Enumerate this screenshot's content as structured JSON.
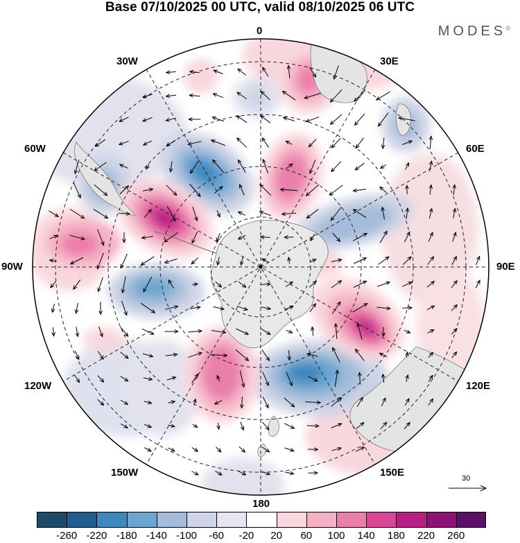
{
  "header": {
    "title": "Base 07/10/2025 00 UTC, valid 08/10/2025 06 UTC",
    "brand": "MODES",
    "brand_mark": "©"
  },
  "map": {
    "projection": "south-polar-stereographic",
    "longitude_labels": {
      "lon_0": "0",
      "lon_30e": "30E",
      "lon_60e": "60E",
      "lon_90e": "90E",
      "lon_120e": "120E",
      "lon_150e": "150E",
      "lon_180": "180",
      "lon_150w": "150W",
      "lon_120w": "120W",
      "lon_90w": "90W",
      "lon_60w": "60W",
      "lon_30w": "30W"
    },
    "reference_vector": {
      "label": "30"
    },
    "colors": {
      "ocean_bg": "#ffffff",
      "land": "#e6e6e6",
      "coast": "#7a7a7a",
      "grid": "#222222"
    },
    "anomaly_centers": [
      {
        "name": "neg-southwest-pacific",
        "value": -180
      },
      {
        "name": "pos-drake-passage",
        "value": 240
      },
      {
        "name": "neg-south-atlantic",
        "value": -200
      },
      {
        "name": "pos-weddell",
        "value": 160
      },
      {
        "name": "neg-bellingshausen",
        "value": -140
      },
      {
        "name": "pos-amundsen",
        "value": 170
      },
      {
        "name": "neg-ross-sea",
        "value": -200
      },
      {
        "name": "pos-wilkes",
        "value": 230
      },
      {
        "name": "neg-indian-ocean",
        "value": -100
      },
      {
        "name": "pos-south-africa",
        "value": 130
      }
    ]
  },
  "legend": {
    "ticks": [
      "-260",
      "-220",
      "-180",
      "-140",
      "-100",
      "-60",
      "-20",
      "20",
      "60",
      "100",
      "140",
      "180",
      "220",
      "260"
    ],
    "colors": [
      "#1f4b6a",
      "#215d8f",
      "#3f87bd",
      "#6ba6d1",
      "#a4bcd9",
      "#cfd4e6",
      "#e7e6f0",
      "#ffffff",
      "#f9d7de",
      "#f5b2c6",
      "#eb7fab",
      "#d84896",
      "#b91e85",
      "#8c1373",
      "#5b116a"
    ]
  }
}
